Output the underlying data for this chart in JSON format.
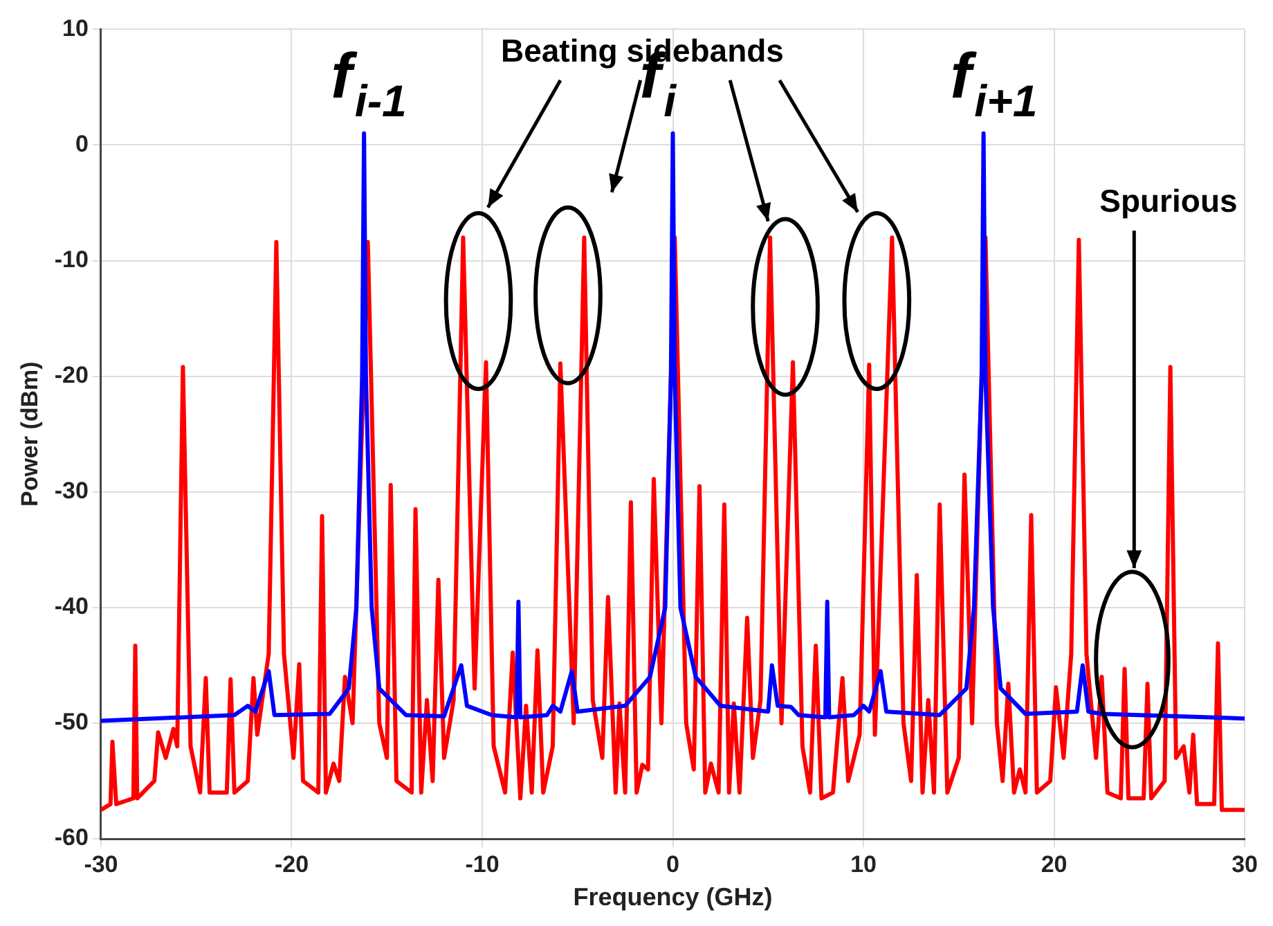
{
  "chart_data": {
    "type": "line",
    "xlabel": "Frequency (GHz)",
    "ylabel": "Power (dBm)",
    "xlim": [
      -30,
      30
    ],
    "xticks": [
      -30,
      -20,
      -10,
      0,
      10,
      20,
      30
    ],
    "ylim": [
      -60,
      10
    ],
    "yticks": [
      -60,
      -50,
      -40,
      -30,
      -20,
      -10,
      0,
      10
    ],
    "grid": true,
    "legend": false,
    "marker": "none",
    "line_style": "solid",
    "series": [
      {
        "color": "#0000ff",
        "x": [
          -30,
          -23,
          -22.3,
          -21.9,
          -21.2,
          -20.9,
          -18,
          -17,
          -16.6,
          -16.3,
          -16.2,
          -16.1,
          -15.8,
          -15.4,
          -14,
          -12,
          -11.1,
          -10.8,
          -9.5,
          -8.2,
          -8.1,
          -8.0,
          -6.6,
          -6.3,
          -5.9,
          -5.3,
          -5.0,
          -2.5,
          -1.2,
          -0.4,
          -0.1,
          0,
          0.1,
          0.4,
          1.2,
          2.5,
          5.0,
          5.2,
          5.5,
          6.2,
          6.6,
          8.0,
          8.1,
          8.2,
          9.5,
          10.0,
          10.3,
          10.9,
          11.2,
          14,
          15.4,
          15.8,
          16.2,
          16.3,
          16.4,
          16.8,
          17.2,
          18.5,
          21.2,
          21.5,
          21.8,
          22.5,
          30
        ],
        "values": [
          -49.8,
          -49.3,
          -48.5,
          -49,
          -45.5,
          -49.3,
          -49.2,
          -47,
          -40,
          -20,
          1,
          -20,
          -40,
          -47,
          -49.3,
          -49.4,
          -45,
          -48.5,
          -49.3,
          -49.5,
          -39.5,
          -49.5,
          -49.3,
          -48.5,
          -49,
          -45.5,
          -49,
          -48.5,
          -46,
          -40,
          -20,
          1,
          -20,
          -40,
          -46,
          -48.5,
          -49,
          -45,
          -48.5,
          -48.6,
          -49.3,
          -49.5,
          -39.5,
          -49.5,
          -49.3,
          -48.5,
          -49,
          -45.5,
          -49,
          -49.3,
          -47,
          -40,
          -20,
          1,
          -20,
          -40,
          -47,
          -49.2,
          -49,
          -45,
          -49,
          -49.2,
          -49.6
        ]
      },
      {
        "color": "#ff0000",
        "x": [
          -30,
          -29.5,
          -29.4,
          -29.2,
          -28.3,
          -28.2,
          -28.1,
          -27.2,
          -27.0,
          -26.6,
          -26.2,
          -26.0,
          -25.7,
          -25.3,
          -24.8,
          -24.5,
          -24.3,
          -23.4,
          -23.2,
          -23.0,
          -22.3,
          -22.0,
          -21.8,
          -21.2,
          -20.8,
          -20.4,
          -19.9,
          -19.6,
          -19.4,
          -18.6,
          -18.4,
          -18.2,
          -17.8,
          -17.5,
          -17.2,
          -16.8,
          -16.0,
          -15.4,
          -15.0,
          -14.8,
          -14.5,
          -13.7,
          -13.5,
          -13.2,
          -12.9,
          -12.6,
          -12.3,
          -12.0,
          -11.5,
          -11.0,
          -10.4,
          -9.8,
          -9.4,
          -8.8,
          -8.4,
          -8.0,
          -7.7,
          -7.4,
          -7.1,
          -6.8,
          -6.3,
          -5.9,
          -5.2,
          -4.65,
          -4.2,
          -3.7,
          -3.4,
          -3.0,
          -2.8,
          -2.5,
          -2.2,
          -1.9,
          -1.6,
          -1.3,
          -1.0,
          -0.6,
          0.1,
          0.7,
          1.1,
          1.4,
          1.7,
          2.0,
          2.4,
          2.7,
          2.95,
          3.2,
          3.5,
          3.9,
          4.2,
          4.6,
          5.1,
          5.7,
          6.3,
          6.8,
          7.2,
          7.5,
          7.8,
          8.1,
          8.4,
          8.9,
          9.2,
          9.8,
          10.3,
          10.6,
          11.5,
          12.1,
          12.5,
          12.8,
          13.1,
          13.4,
          13.7,
          14.0,
          14.4,
          15.0,
          15.3,
          15.7,
          16.4,
          17.0,
          17.3,
          17.6,
          17.9,
          18.2,
          18.5,
          18.8,
          19.1,
          19.8,
          20.1,
          20.5,
          20.9,
          21.3,
          21.7,
          22.2,
          22.5,
          22.8,
          23.5,
          23.7,
          23.9,
          24.7,
          24.9,
          25.1,
          25.8,
          26.1,
          26.4,
          26.8,
          27.1,
          27.3,
          27.5,
          28.4,
          28.6,
          28.8,
          30
        ],
        "values": [
          -57.5,
          -57,
          -51.6,
          -57,
          -56.5,
          -43.3,
          -56.5,
          -55,
          -50.8,
          -53,
          -50.5,
          -52,
          -19.2,
          -52,
          -56,
          -46.1,
          -56,
          -56,
          -46.2,
          -56,
          -55,
          -46.1,
          -51,
          -44,
          -8.4,
          -44,
          -53,
          -44.9,
          -55,
          -56,
          -32.1,
          -56,
          -53.5,
          -55,
          -46,
          -50,
          -8.4,
          -50,
          -53,
          -29.4,
          -55,
          -56,
          -31.5,
          -56,
          -48,
          -55,
          -37.6,
          -53,
          -48,
          -8.0,
          -47,
          -18.8,
          -52,
          -56,
          -43.9,
          -56.5,
          -48.5,
          -56,
          -43.7,
          -56,
          -52,
          -18.9,
          -50,
          -8.0,
          -48,
          -53,
          -39.1,
          -56,
          -48.3,
          -56,
          -30.9,
          -56,
          -53.6,
          -54,
          -28.9,
          -50,
          -8.0,
          -50,
          -54,
          -29.5,
          -56,
          -53.5,
          -56,
          -31.1,
          -56,
          -48.3,
          -56,
          -40.9,
          -53,
          -48,
          -8.0,
          -50,
          -18.8,
          -52,
          -56,
          -43.3,
          -56.5,
          null,
          -56,
          -46.1,
          -55,
          -51,
          -19,
          -51,
          -8.0,
          -50,
          -55,
          -37.2,
          -56,
          -48,
          -56,
          -31.1,
          -56,
          -53,
          -28.5,
          -50,
          -8.0,
          -50,
          -55,
          -46.6,
          -56,
          -54,
          -56,
          -32,
          -56,
          -55,
          -46.9,
          -53,
          -44,
          -8.2,
          -44,
          -53,
          -46,
          -56,
          -56.5,
          -45.3,
          -56.5,
          -56.5,
          -46.6,
          -56.5,
          -55,
          -19.2,
          -53,
          -52,
          -56,
          -51,
          -57,
          -57,
          -43.1,
          -57.5,
          -57.5
        ]
      }
    ],
    "annotations": [
      {
        "text": "f$_{i-1}$",
        "x": -16.2,
        "y": 1
      },
      {
        "text": "f$_{i}$",
        "x": 0,
        "y": 1
      },
      {
        "text": "f$_{i+1}$",
        "x": 16.3,
        "y": 1
      },
      "Beating sidebands",
      "Spurious"
    ]
  }
}
